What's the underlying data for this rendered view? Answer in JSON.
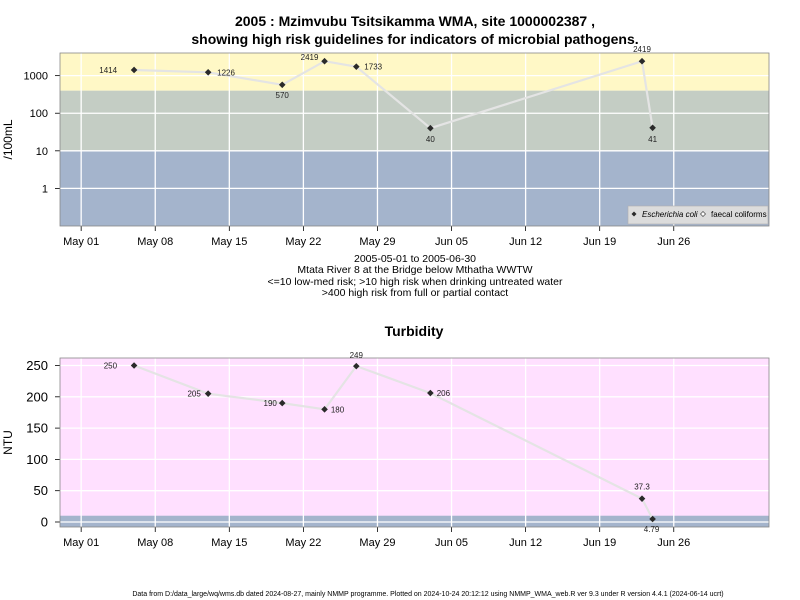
{
  "colors": {
    "high_risk_band": "#fff8c6",
    "med_risk_band": "#c4cdc4",
    "low_risk_band": "#a4b4cc",
    "turbidity_band": "#ffe0ff",
    "turbidity_low_band": "#a4b4cc",
    "series_line": "#e4e4e4",
    "point": "#2a2a2a",
    "legend_bg": "#dcdcdc"
  },
  "panel1": {
    "title_line1": "2005 : Mzimvubu Tsitsikamma WMA, site 1000002387 ,",
    "title_line2": "showing high risk guidelines for indicators of microbial pathogens.",
    "ylabel": "/100mL",
    "caption": [
      "2005-05-01 to 2005-06-30",
      "Mtata River 8 at the Bridge below Mthatha WWTW",
      "<=10 low-med risk; >10 high risk when drinking untreated water",
      ">400 high risk from full or partial contact"
    ],
    "legend": [
      {
        "label": "Escherichia coli",
        "marker": "filled-diamond"
      },
      {
        "label": "faecal coliforms",
        "marker": "open-diamond"
      }
    ]
  },
  "panel2": {
    "title": "Turbidity",
    "ylabel": "NTU"
  },
  "footer": "Data from D:/data_large/wq/wms.db dated 2024-08-27, mainly NMMP programme. Plotted on 2024-10-24 20:12:12 using NMMP_WMA_web.R ver 9.3 under R version 4.4.1 (2024-06-14 ucrt)",
  "chart_data": [
    {
      "type": "line",
      "title": "2005 : Mzimvubu Tsitsikamma WMA, site 1000002387 , showing high risk guidelines for indicators of microbial pathogens.",
      "ylabel": "/100mL",
      "y_scale": "log",
      "yticks": [
        "1",
        "10",
        "100",
        "1000"
      ],
      "xticks": [
        "May 01",
        "May 08",
        "May 15",
        "May 22",
        "May 29",
        "Jun 05",
        "Jun 12",
        "Jun 19",
        "Jun 26"
      ],
      "xlim": [
        "2005-04-29",
        "2005-07-05"
      ],
      "ylim": [
        0.1,
        4000
      ],
      "guideline_bands": [
        {
          "from": 0.1,
          "to": 10,
          "meaning": "low-med risk"
        },
        {
          "from": 10,
          "to": 400,
          "meaning": "high risk when drinking untreated water"
        },
        {
          "from": 400,
          "to": 4000,
          "meaning": "high risk from full or partial contact"
        }
      ],
      "legend_position": "bottom-right",
      "series": [
        {
          "name": "Escherichia coli",
          "points": [
            {
              "date": "2005-05-06",
              "value": 1414
            },
            {
              "date": "2005-05-13",
              "value": 1226
            },
            {
              "date": "2005-05-20",
              "value": 570
            },
            {
              "date": "2005-05-24",
              "value": 2419
            },
            {
              "date": "2005-05-27",
              "value": 1733
            },
            {
              "date": "2005-06-03",
              "value": 40
            },
            {
              "date": "2005-06-23",
              "value": 2419
            },
            {
              "date": "2005-06-24",
              "value": 41
            }
          ]
        }
      ]
    },
    {
      "type": "line",
      "title": "Turbidity",
      "ylabel": "NTU",
      "y_scale": "linear",
      "yticks": [
        "0",
        "50",
        "100",
        "150",
        "200",
        "250"
      ],
      "xticks": [
        "May 01",
        "May 08",
        "May 15",
        "May 22",
        "May 29",
        "Jun 05",
        "Jun 12",
        "Jun 19",
        "Jun 26"
      ],
      "xlim": [
        "2005-04-29",
        "2005-07-05"
      ],
      "ylim": [
        -8,
        262
      ],
      "guideline_bands": [
        {
          "from": -8,
          "to": 10,
          "meaning": "low turbidity"
        }
      ],
      "series": [
        {
          "points": [
            {
              "date": "2005-05-06",
              "value": 250
            },
            {
              "date": "2005-05-13",
              "value": 205
            },
            {
              "date": "2005-05-20",
              "value": 190
            },
            {
              "date": "2005-05-24",
              "value": 180
            },
            {
              "date": "2005-05-27",
              "value": 249
            },
            {
              "date": "2005-06-03",
              "value": 206
            },
            {
              "date": "2005-06-23",
              "value": 37.3
            },
            {
              "date": "2005-06-24",
              "value": 4.79
            }
          ]
        }
      ]
    }
  ]
}
